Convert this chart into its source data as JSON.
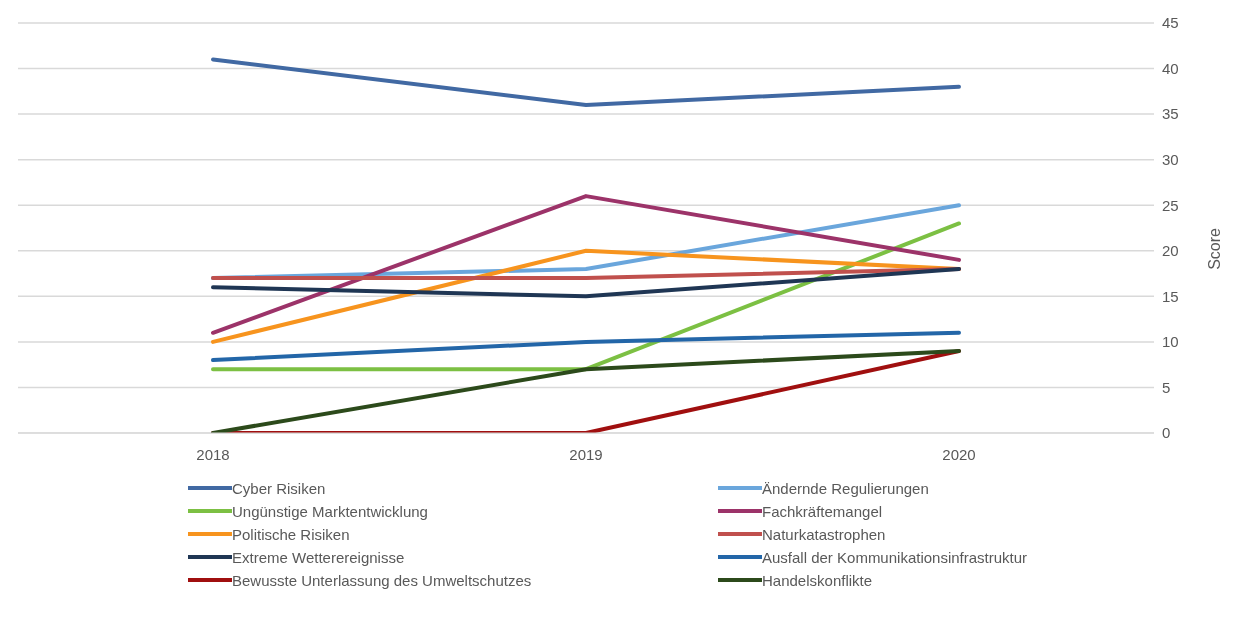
{
  "chart_data": {
    "type": "line",
    "ylabel": "Score",
    "categories": [
      "2018",
      "2019",
      "2020"
    ],
    "series": [
      {
        "name": "Cyber Risiken",
        "color": "#4169a3",
        "values": [
          41,
          36,
          38
        ]
      },
      {
        "name": "Ändernde Regulierungen",
        "color": "#6aa6dc",
        "values": [
          17,
          18,
          25
        ]
      },
      {
        "name": "Ungünstige Marktentwicklung",
        "color": "#7cc043",
        "values": [
          7,
          7,
          23
        ]
      },
      {
        "name": "Fachkräftemangel",
        "color": "#9c3369",
        "values": [
          11,
          26,
          19
        ]
      },
      {
        "name": "Politische Risiken",
        "color": "#f7941e",
        "values": [
          10,
          20,
          18
        ]
      },
      {
        "name": "Naturkatastrophen",
        "color": "#c0504d",
        "values": [
          17,
          17,
          18
        ]
      },
      {
        "name": "Extreme Wetterereignisse",
        "color": "#1f3654",
        "values": [
          16,
          15,
          18
        ]
      },
      {
        "name": "Ausfall der Kommunikationsinfrastruktur",
        "color": "#2366a8",
        "values": [
          8,
          10,
          11
        ]
      },
      {
        "name": "Bewusste Unterlassung des Umweltschutzes",
        "color": "#a00f0f",
        "values": [
          0,
          0,
          9
        ]
      },
      {
        "name": "Handelskonflikte",
        "color": "#2c4a1b",
        "values": [
          0,
          7,
          9
        ]
      }
    ],
    "ylim": [
      0,
      45
    ],
    "yticks": [
      0,
      5,
      10,
      15,
      20,
      25,
      30,
      35,
      40,
      45
    ],
    "grid": "y",
    "legend": "bottom",
    "marker": "none",
    "line_style": "solid"
  }
}
